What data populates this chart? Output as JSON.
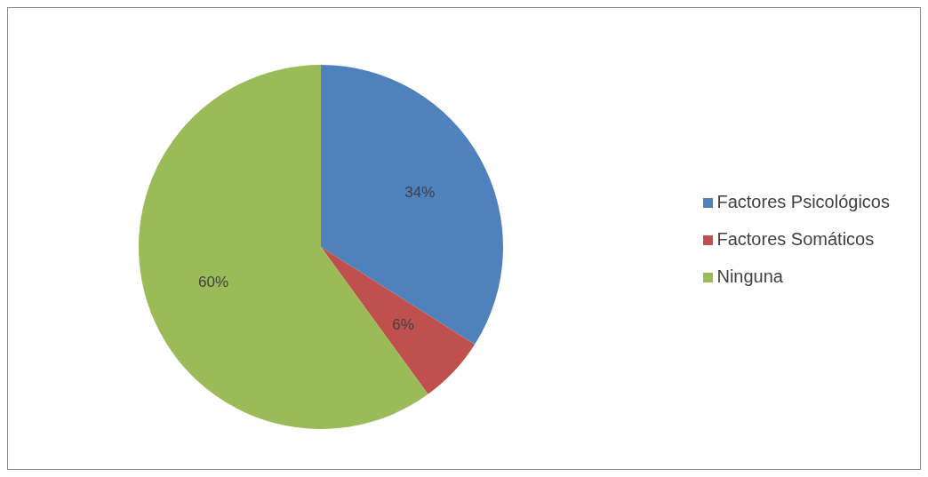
{
  "chart_data": {
    "type": "pie",
    "categories": [
      "Factores Psicológicos",
      "Factores  Somáticos",
      "Ninguna"
    ],
    "values": [
      34,
      6,
      60
    ],
    "value_labels": [
      "34%",
      "6%",
      "60%"
    ],
    "colors": [
      "#4f81bd",
      "#c0504d",
      "#9bbb59"
    ],
    "legend": "right"
  }
}
